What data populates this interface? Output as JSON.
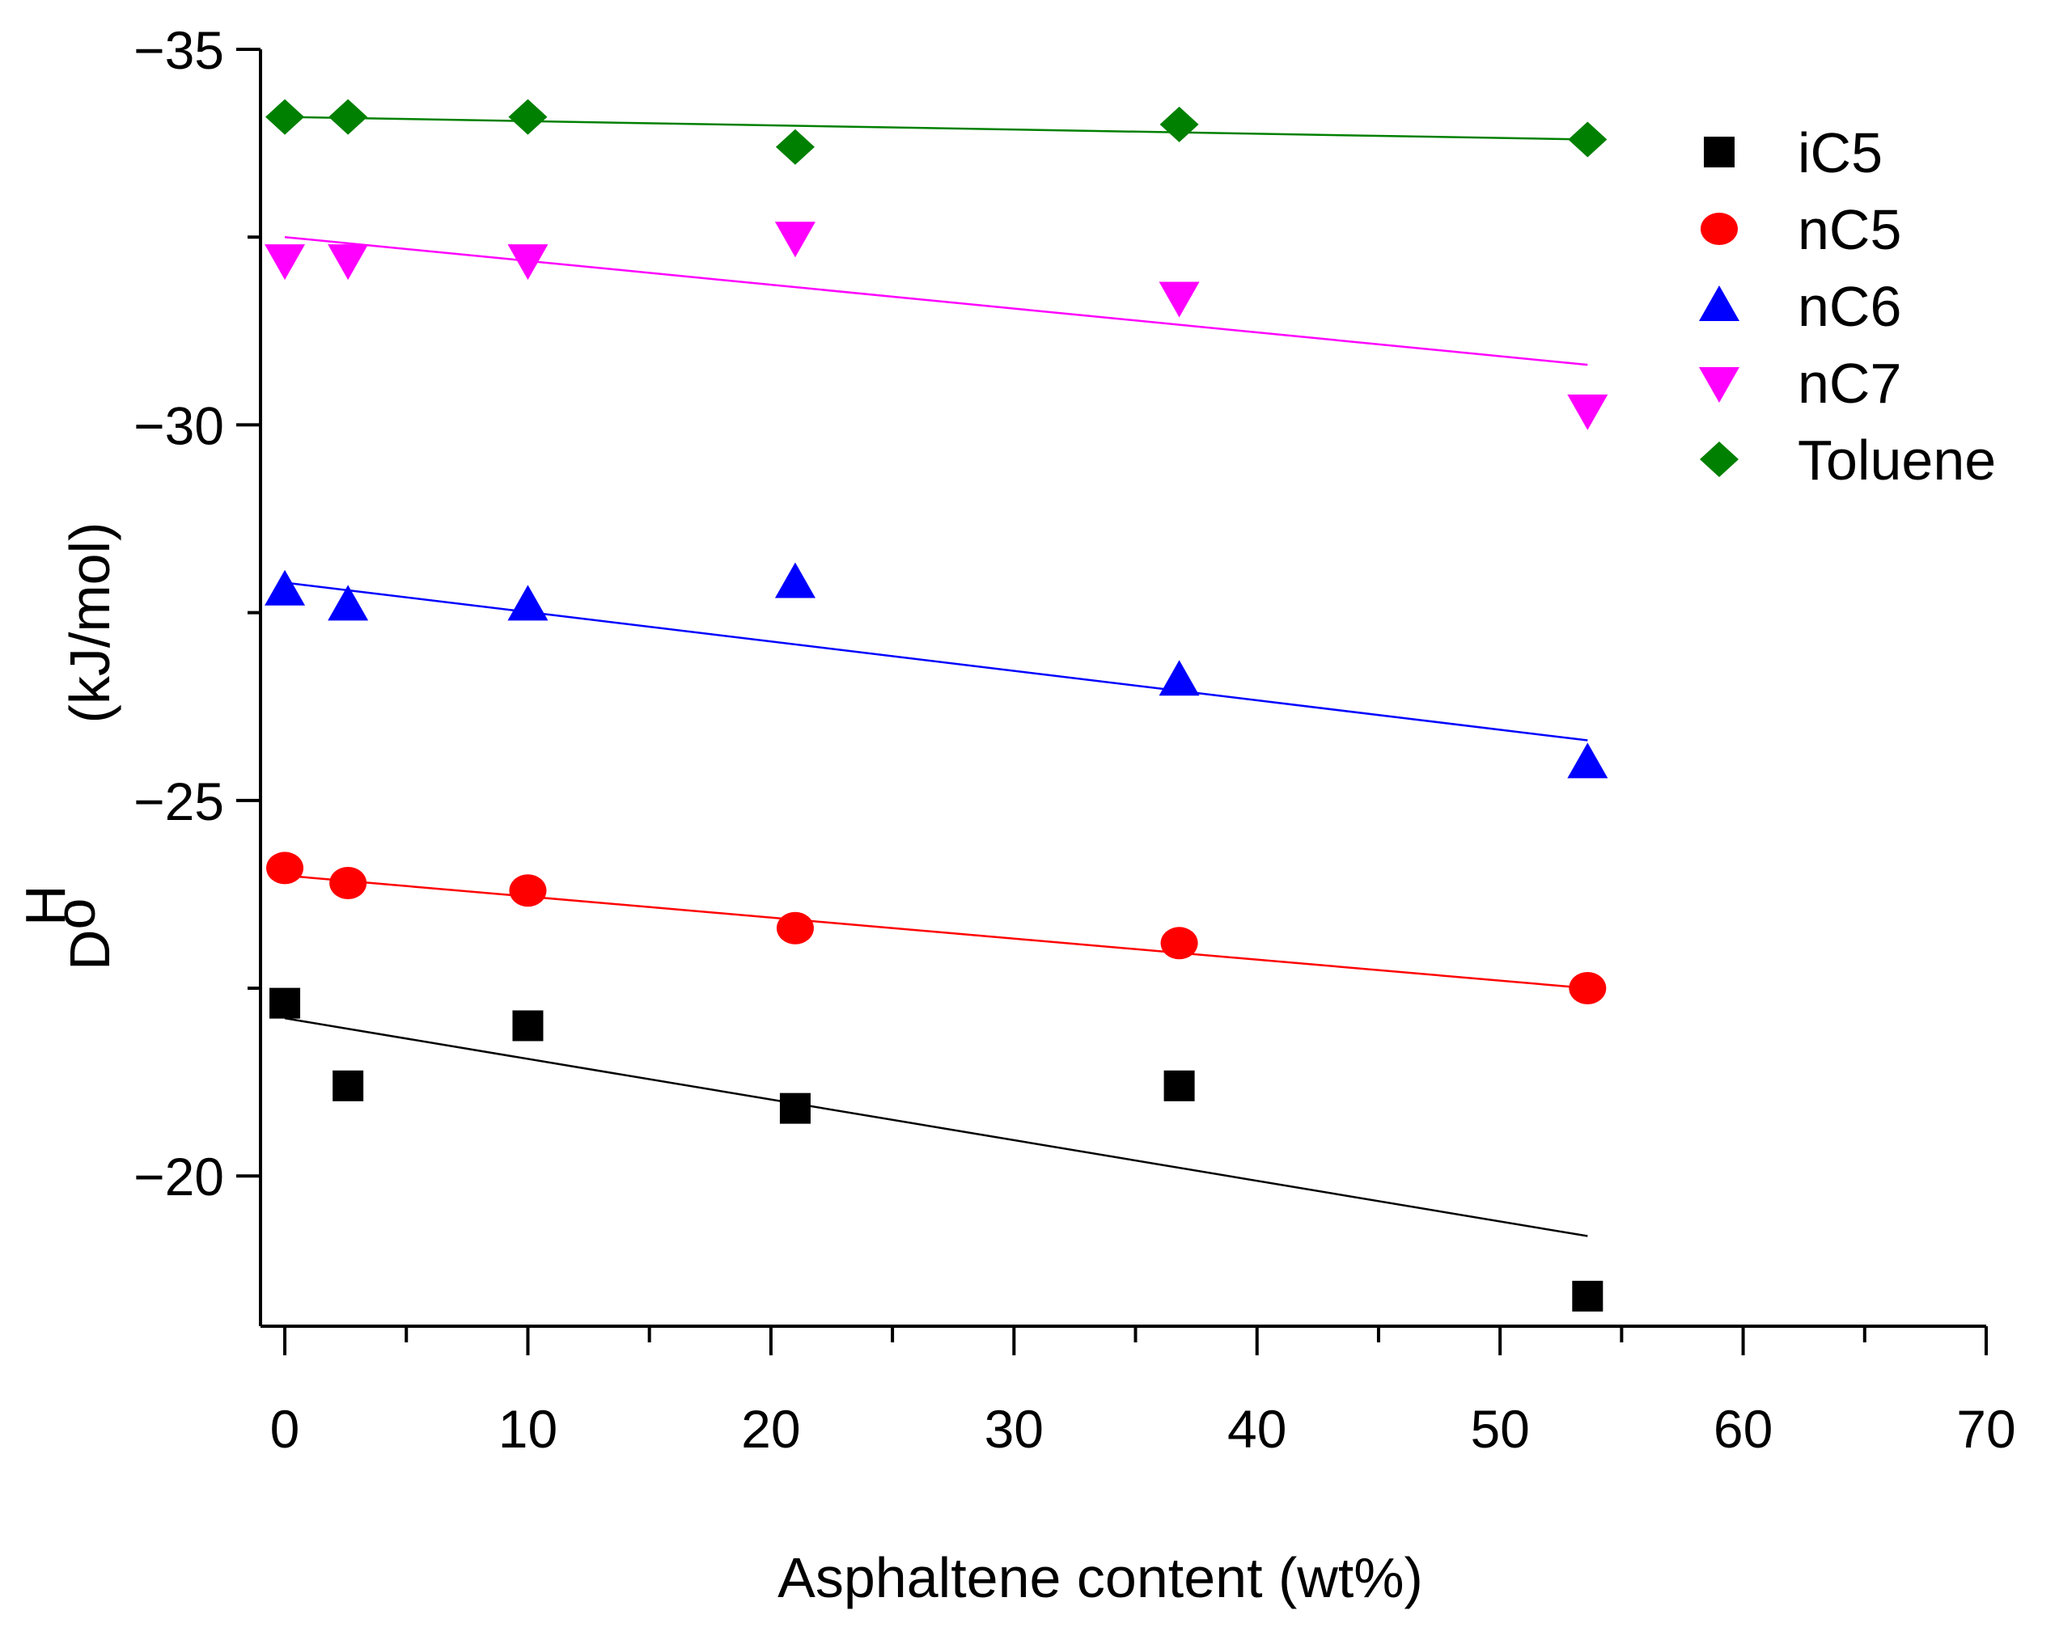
{
  "chart_data": {
    "type": "scatter",
    "xlabel": "Asphaltene content (wt%)",
    "ylabel_main": "D",
    "ylabel_super": "H",
    "ylabel_sub": "o",
    "ylabel_unit": "(kJ/mol)",
    "xlim": [
      -1,
      70
    ],
    "ylim": [
      -35,
      -18
    ],
    "y_inverted": true,
    "x_ticks": [
      0,
      10,
      20,
      30,
      40,
      50,
      60,
      70
    ],
    "x_tick_labels": [
      "0",
      "10",
      "20",
      "30",
      "40",
      "50",
      "60",
      "70"
    ],
    "y_ticks": [
      -35,
      -30,
      -25,
      -20
    ],
    "y_tick_labels": [
      "−35",
      "−30",
      "−25",
      "−20"
    ],
    "legend_position": "top-right",
    "series": [
      {
        "name": "iC5",
        "color": "#000000",
        "marker": "square",
        "x": [
          0,
          2.6,
          10,
          21,
          36.8,
          53.6
        ],
        "y": [
          -22.3,
          -21.2,
          -22.0,
          -20.9,
          -21.2,
          -18.4
        ],
        "fit": {
          "x": [
            0,
            53.6
          ],
          "y": [
            -22.1,
            -19.2
          ]
        }
      },
      {
        "name": "nC5",
        "color": "#ff0000",
        "marker": "circle",
        "x": [
          0,
          2.6,
          10,
          21,
          36.8,
          53.6
        ],
        "y": [
          -24.1,
          -23.9,
          -23.8,
          -23.3,
          -23.1,
          -22.5
        ],
        "fit": {
          "x": [
            0,
            53.6
          ],
          "y": [
            -24.0,
            -22.5
          ]
        }
      },
      {
        "name": "nC6",
        "color": "#0000ff",
        "marker": "triangle-up",
        "x": [
          0,
          2.6,
          10,
          21,
          36.8,
          53.6
        ],
        "y": [
          -27.8,
          -27.6,
          -27.6,
          -27.9,
          -26.6,
          -25.5
        ],
        "fit": {
          "x": [
            0,
            53.6
          ],
          "y": [
            -27.9,
            -25.8
          ]
        }
      },
      {
        "name": "nC7",
        "color": "#ff00ff",
        "marker": "triangle-down",
        "x": [
          0,
          2.6,
          10,
          21,
          36.8,
          53.6
        ],
        "y": [
          -32.2,
          -32.2,
          -32.2,
          -32.5,
          -31.7,
          -30.2
        ],
        "fit": {
          "x": [
            0,
            53.6
          ],
          "y": [
            -32.5,
            -30.8
          ]
        }
      },
      {
        "name": "Toluene",
        "color": "#008000",
        "marker": "diamond",
        "x": [
          0,
          2.6,
          10,
          21,
          36.8,
          53.6
        ],
        "y": [
          -34.1,
          -34.1,
          -34.1,
          -33.7,
          -34.0,
          -33.8
        ],
        "fit": {
          "x": [
            0,
            53.6
          ],
          "y": [
            -34.1,
            -33.8
          ]
        }
      }
    ]
  }
}
